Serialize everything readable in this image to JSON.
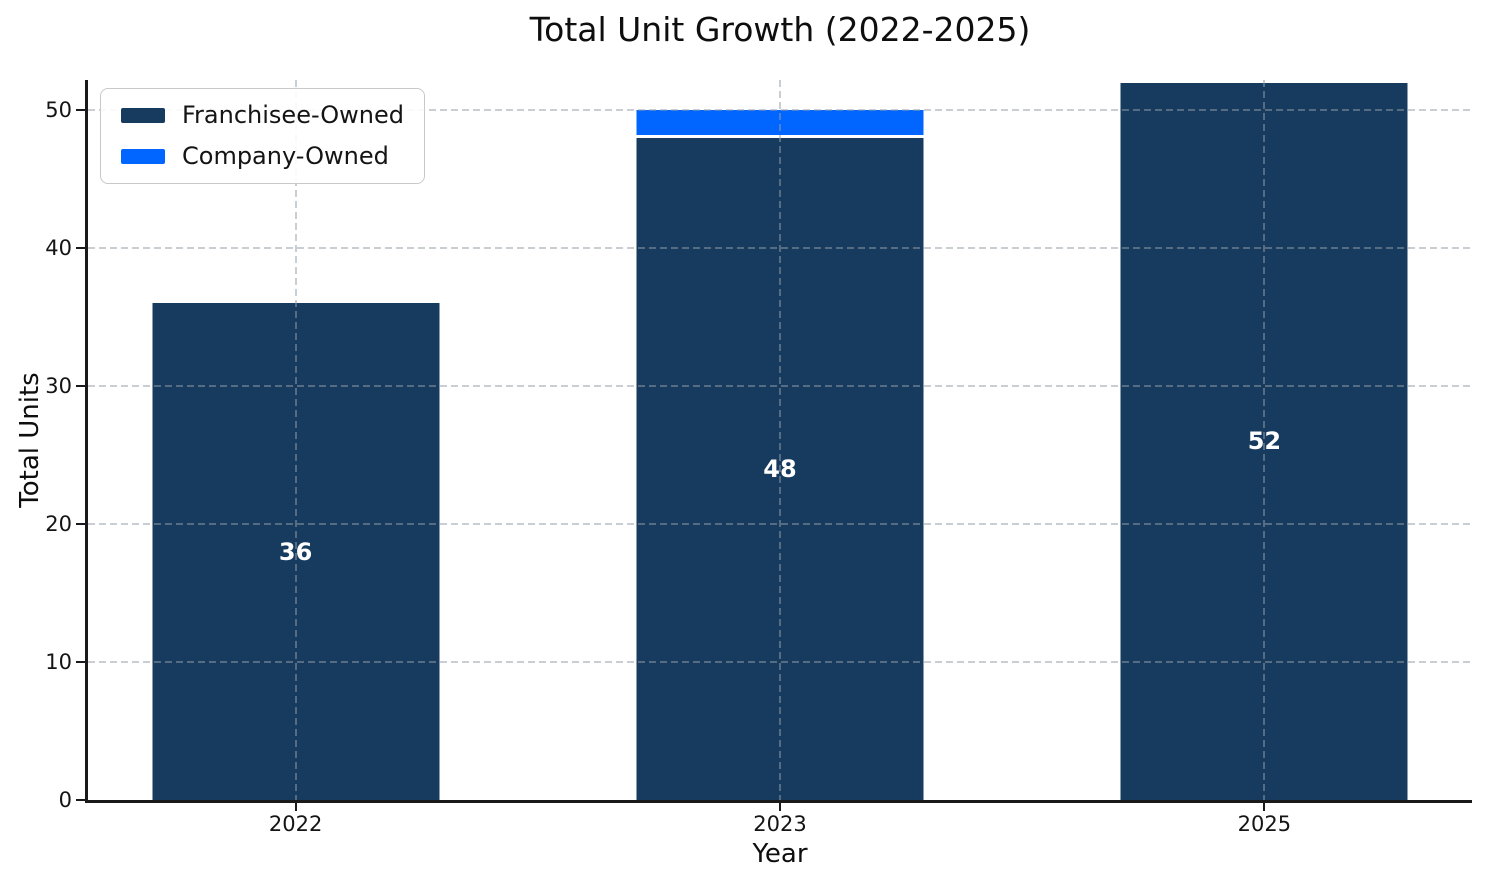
{
  "figure": {
    "background": "#ffffff"
  },
  "chart_data": {
    "type": "bar",
    "stacked": true,
    "title": "Total Unit Growth (2022-2025)",
    "xlabel": "Year",
    "ylabel": "Total Units",
    "categories": [
      "2022",
      "2023",
      "2025"
    ],
    "series": [
      {
        "name": "Franchisee-Owned",
        "color": "#173A5F",
        "values": [
          36,
          48,
          52
        ]
      },
      {
        "name": "Company-Owned",
        "color": "#0066FF",
        "values": [
          0,
          2,
          0
        ]
      }
    ],
    "totals": [
      36,
      50,
      52
    ],
    "bar_labels": [
      "36",
      "48",
      "52"
    ],
    "bar_label_color": "#ffffff",
    "segment_divider_color": "#ffffff",
    "yticks": [
      0,
      10,
      20,
      30,
      40,
      50
    ],
    "ylim": [
      0,
      52.2
    ],
    "grid": true,
    "grid_style": "dashed",
    "legend_position": "upper-left",
    "axis_color": "#1a1a1a"
  }
}
